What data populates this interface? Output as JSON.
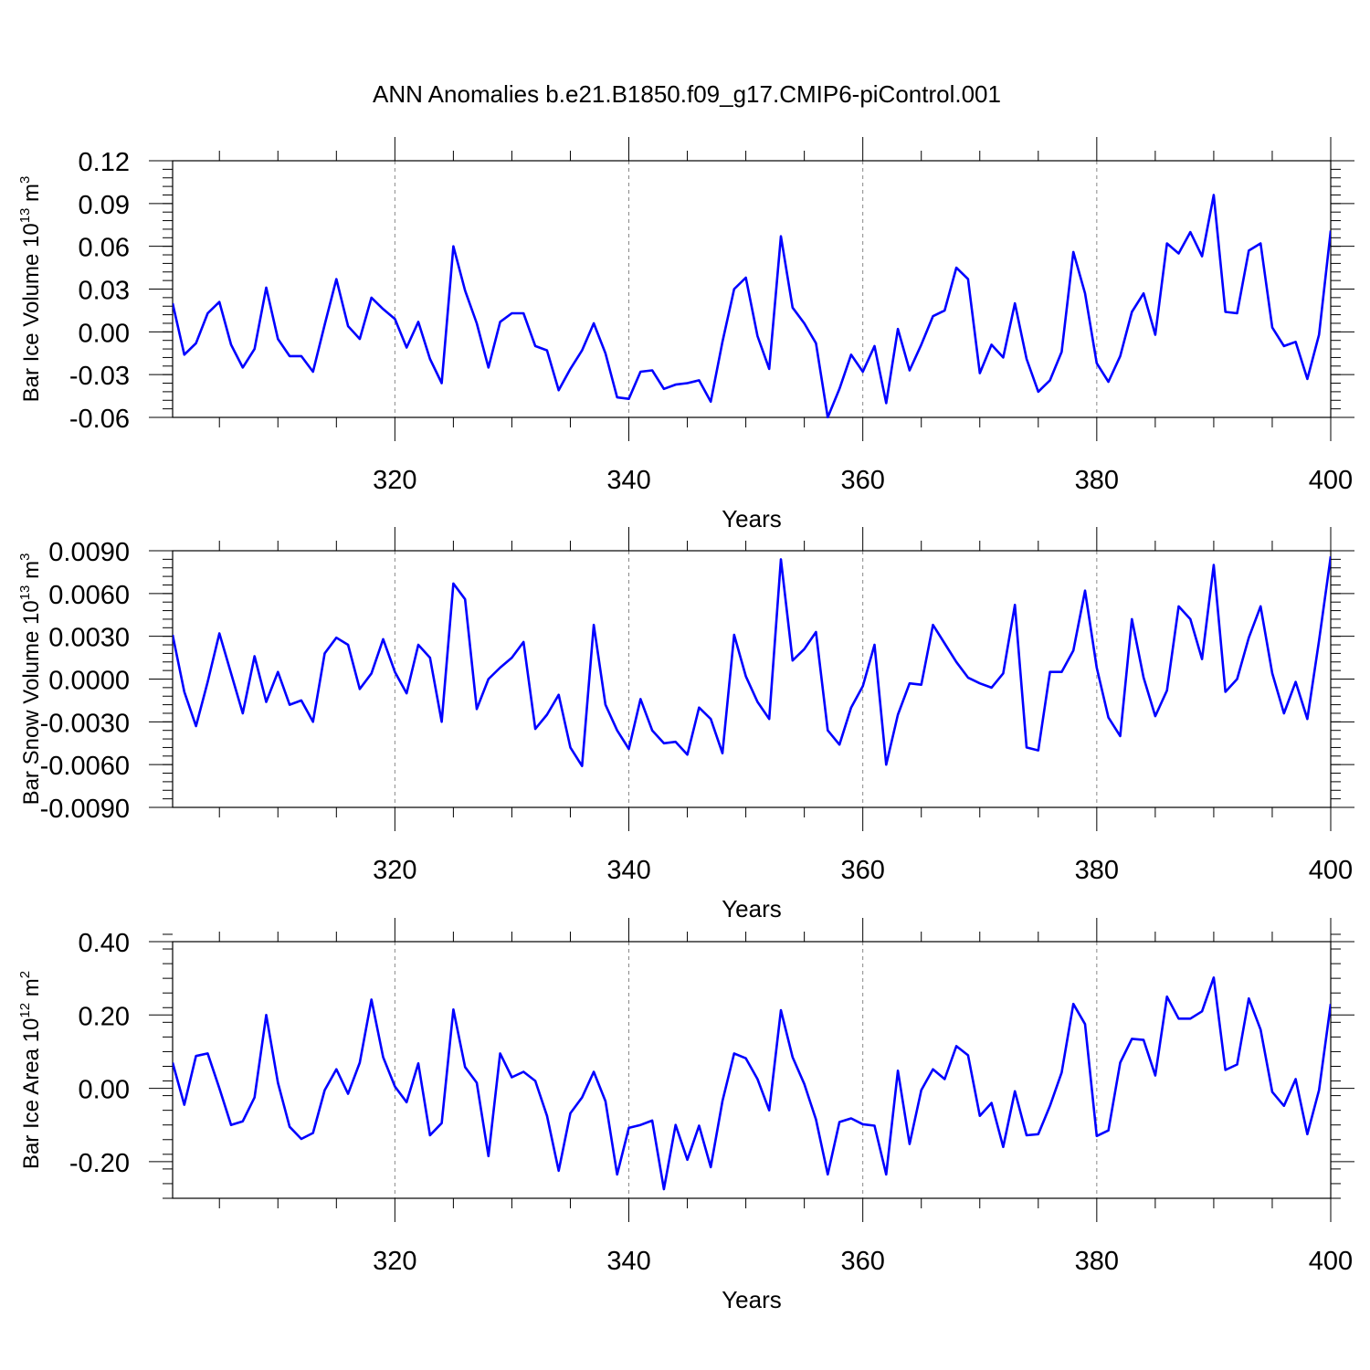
{
  "title": "ANN Anomalies b.e21.B1850.f09_g17.CMIP6-piControl.001",
  "colors": {
    "series": "#0000ff",
    "axis": "#000000",
    "grid": "#888888"
  },
  "chart_data": [
    {
      "type": "line",
      "ylabel_main": "Bar Ice Volume 10",
      "ylabel_exp": "13",
      "ylabel_unit": " m",
      "ylabel_unit_exp": "3",
      "xlabel": "Years",
      "xlim": [
        301,
        400
      ],
      "ylim": [
        -0.06,
        0.12
      ],
      "yticks": [
        -0.06,
        -0.03,
        0.0,
        0.03,
        0.06,
        0.09,
        0.12
      ],
      "ytick_labels": [
        "-0.06",
        "-0.03",
        "0.00",
        "0.03",
        "0.06",
        "0.09",
        "0.12"
      ],
      "xticks": [
        320,
        340,
        360,
        380,
        400
      ],
      "xtick_labels": [
        "320",
        "340",
        "360",
        "380",
        "400"
      ],
      "x_start": 301,
      "values": [
        0.02,
        -0.016,
        -0.008,
        0.013,
        0.021,
        -0.009,
        -0.025,
        -0.012,
        0.031,
        -0.005,
        -0.017,
        -0.017,
        -0.028,
        0.005,
        0.037,
        0.004,
        -0.005,
        0.024,
        0.016,
        0.009,
        -0.011,
        0.007,
        -0.019,
        -0.036,
        0.06,
        0.029,
        0.006,
        -0.025,
        0.007,
        0.013,
        0.013,
        -0.01,
        -0.013,
        -0.041,
        -0.026,
        -0.013,
        0.006,
        -0.015,
        -0.046,
        -0.047,
        -0.028,
        -0.027,
        -0.04,
        -0.037,
        -0.036,
        -0.034,
        -0.049,
        -0.007,
        0.03,
        0.038,
        -0.003,
        -0.026,
        0.067,
        0.017,
        0.006,
        -0.008,
        -0.06,
        -0.04,
        -0.016,
        -0.028,
        -0.01,
        -0.05,
        0.002,
        -0.027,
        -0.009,
        0.011,
        0.015,
        0.045,
        0.037,
        -0.029,
        -0.009,
        -0.018,
        0.02,
        -0.019,
        -0.042,
        -0.034,
        -0.014,
        0.056,
        0.027,
        -0.022,
        -0.035,
        -0.017,
        0.014,
        0.027,
        -0.002,
        0.062,
        0.055,
        0.07,
        0.053,
        0.096,
        0.014,
        0.013,
        0.057,
        0.062,
        0.003,
        -0.01,
        -0.007,
        -0.033,
        -0.002,
        0.071
      ]
    },
    {
      "type": "line",
      "ylabel_main": "Bar Snow Volume 10",
      "ylabel_exp": "13",
      "ylabel_unit": " m",
      "ylabel_unit_exp": "3",
      "xlabel": "Years",
      "xlim": [
        301,
        400
      ],
      "ylim": [
        -0.009,
        0.009
      ],
      "yticks": [
        -0.009,
        -0.006,
        -0.003,
        0.0,
        0.003,
        0.006,
        0.009
      ],
      "ytick_labels": [
        "-0.0090",
        "-0.0060",
        "-0.0030",
        "0.0000",
        "0.0030",
        "0.0060",
        "0.0090"
      ],
      "xticks": [
        320,
        340,
        360,
        380,
        400
      ],
      "xtick_labels": [
        "320",
        "340",
        "360",
        "380",
        "400"
      ],
      "x_start": 301,
      "values": [
        0.0031,
        -0.0009,
        -0.0033,
        -0.0002,
        0.0032,
        0.0004,
        -0.0024,
        0.0016,
        -0.0016,
        0.0005,
        -0.0018,
        -0.0015,
        -0.003,
        0.0018,
        0.0029,
        0.0024,
        -0.0007,
        0.0004,
        0.0028,
        0.0005,
        -0.001,
        0.0024,
        0.0015,
        -0.003,
        0.0067,
        0.0056,
        -0.0021,
        0.0,
        0.0008,
        0.0015,
        0.0026,
        -0.0035,
        -0.0025,
        -0.0011,
        -0.0048,
        -0.0061,
        0.0038,
        -0.0018,
        -0.0036,
        -0.0049,
        -0.0014,
        -0.0036,
        -0.0045,
        -0.0044,
        -0.0053,
        -0.002,
        -0.0028,
        -0.0052,
        0.0031,
        0.0002,
        -0.0016,
        -0.0028,
        0.0084,
        0.0013,
        0.0021,
        0.0033,
        -0.0036,
        -0.0046,
        -0.002,
        -0.0005,
        0.0024,
        -0.006,
        -0.0025,
        -0.0003,
        -0.0004,
        0.0038,
        0.0025,
        0.0012,
        0.0001,
        -0.0003,
        -0.0006,
        0.0004,
        0.0052,
        -0.0048,
        -0.005,
        0.0005,
        0.0005,
        0.002,
        0.0062,
        0.0008,
        -0.0027,
        -0.004,
        0.0042,
        0.0001,
        -0.0026,
        -0.0008,
        0.0051,
        0.0042,
        0.0014,
        0.008,
        -0.0009,
        0.0,
        0.0029,
        0.0051,
        0.0004,
        -0.0024,
        -0.0002,
        -0.0028,
        0.0027,
        0.0086
      ]
    },
    {
      "type": "line",
      "ylabel_main": "Bar Ice Area 10",
      "ylabel_exp": "12",
      "ylabel_unit": " m",
      "ylabel_unit_exp": "2",
      "xlabel": "Years",
      "xlim": [
        301,
        400
      ],
      "ylim": [
        -0.3,
        0.4
      ],
      "yticks": [
        -0.2,
        0.0,
        0.2,
        0.4
      ],
      "ytick_labels": [
        "-0.20",
        "0.00",
        "0.20",
        "0.40"
      ],
      "xticks": [
        320,
        340,
        360,
        380,
        400
      ],
      "xtick_labels": [
        "320",
        "340",
        "360",
        "380",
        "400"
      ],
      "x_start": 301,
      "values": [
        0.07,
        -0.045,
        0.088,
        0.095,
        0.0,
        -0.1,
        -0.09,
        -0.025,
        0.2,
        0.015,
        -0.105,
        -0.138,
        -0.122,
        -0.005,
        0.052,
        -0.015,
        0.07,
        0.242,
        0.085,
        0.005,
        -0.038,
        0.068,
        -0.128,
        -0.095,
        0.215,
        0.058,
        0.015,
        -0.185,
        0.095,
        0.03,
        0.045,
        0.02,
        -0.075,
        -0.225,
        -0.068,
        -0.025,
        0.045,
        -0.035,
        -0.235,
        -0.108,
        -0.1,
        -0.088,
        -0.275,
        -0.1,
        -0.195,
        -0.102,
        -0.215,
        -0.035,
        0.095,
        0.082,
        0.025,
        -0.06,
        0.213,
        0.085,
        0.012,
        -0.085,
        -0.235,
        -0.092,
        -0.082,
        -0.098,
        -0.102,
        -0.235,
        0.048,
        -0.152,
        -0.005,
        0.052,
        0.025,
        0.115,
        0.09,
        -0.075,
        -0.04,
        -0.16,
        -0.008,
        -0.128,
        -0.125,
        -0.048,
        0.043,
        0.23,
        0.175,
        -0.13,
        -0.115,
        0.07,
        0.135,
        0.132,
        0.035,
        0.25,
        0.19,
        0.19,
        0.21,
        0.302,
        0.05,
        0.065,
        0.245,
        0.16,
        -0.01,
        -0.048,
        0.025,
        -0.125,
        -0.005,
        0.23
      ]
    }
  ]
}
